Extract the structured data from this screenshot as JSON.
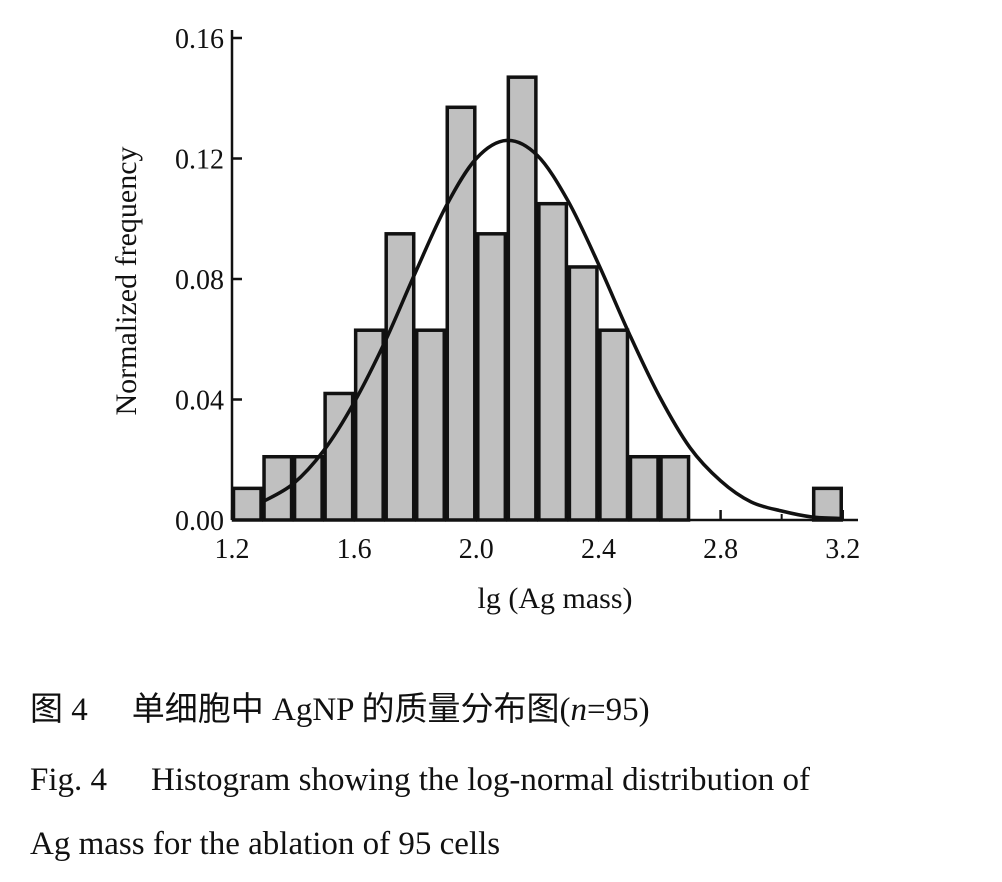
{
  "chart_data": {
    "type": "bar",
    "subtype": "histogram with fitted log-normal curve",
    "xlabel": "lg (Ag mass)",
    "ylabel": "Normalized frequency",
    "xlim": [
      1.2,
      3.25
    ],
    "ylim": [
      0,
      0.16
    ],
    "x_ticks": [
      "1.2",
      "1.6",
      "2.0",
      "2.4",
      "2.8",
      "3.2"
    ],
    "y_ticks": [
      "0.00",
      "0.04",
      "0.08",
      "0.12",
      "0.16"
    ],
    "bin_width": 0.1,
    "bins": [
      {
        "x": 1.25,
        "value": 0.0105
      },
      {
        "x": 1.35,
        "value": 0.021
      },
      {
        "x": 1.45,
        "value": 0.021
      },
      {
        "x": 1.55,
        "value": 0.042
      },
      {
        "x": 1.65,
        "value": 0.063
      },
      {
        "x": 1.75,
        "value": 0.095
      },
      {
        "x": 1.85,
        "value": 0.063
      },
      {
        "x": 1.95,
        "value": 0.137
      },
      {
        "x": 2.05,
        "value": 0.095
      },
      {
        "x": 2.15,
        "value": 0.147
      },
      {
        "x": 2.25,
        "value": 0.105
      },
      {
        "x": 2.35,
        "value": 0.084
      },
      {
        "x": 2.45,
        "value": 0.063
      },
      {
        "x": 2.55,
        "value": 0.021
      },
      {
        "x": 2.65,
        "value": 0.021
      },
      {
        "x": 3.15,
        "value": 0.0105
      }
    ],
    "fit_curve": {
      "x": [
        1.3,
        1.4,
        1.5,
        1.6,
        1.7,
        1.8,
        1.9,
        2.0,
        2.1,
        2.2,
        2.3,
        2.4,
        2.5,
        2.6,
        2.7,
        2.8,
        2.9,
        3.0,
        3.1,
        3.2
      ],
      "y": [
        0.006,
        0.012,
        0.023,
        0.039,
        0.059,
        0.082,
        0.104,
        0.12,
        0.126,
        0.121,
        0.106,
        0.085,
        0.062,
        0.041,
        0.024,
        0.013,
        0.006,
        0.003,
        0.001,
        0.0005
      ]
    },
    "grid": false,
    "bar_color": "#c0c0c0",
    "bar_edge_color": "#111111",
    "curve_color": "#111111"
  },
  "caption": {
    "cn_label": "图 4",
    "cn_text_prefix": "单细胞中 AgNP 的质量分布图(",
    "cn_text_n": "n",
    "cn_text_suffix": "=95)",
    "en_label": "Fig. 4",
    "en_line1": "Histogram showing the log-normal distribution of",
    "en_line2": "Ag mass for the ablation of 95 cells"
  }
}
